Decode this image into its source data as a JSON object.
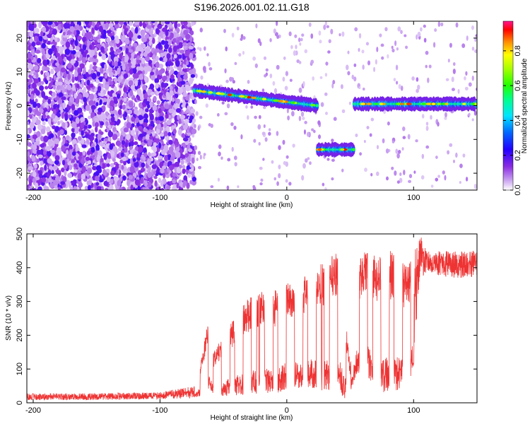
{
  "figure": {
    "title": "S196.2026.001.02.11.G18"
  },
  "chart_data": [
    {
      "id": "spectrogram",
      "type": "heatmap",
      "xlabel": "Height of straight line (km)",
      "ylabel": "Frequency (Hz)",
      "xlim": [
        -205,
        150
      ],
      "ylim": [
        -25,
        25
      ],
      "xticks": [
        -200,
        -100,
        0,
        100
      ],
      "yticks": [
        -20,
        -10,
        0,
        10,
        20
      ],
      "colorbar": {
        "label": "Normalized spectral amplitude",
        "range": [
          0,
          0.97
        ],
        "ticks": [
          0.0,
          0.2,
          0.4,
          0.6,
          0.8
        ],
        "tick_labels": [
          "0.0",
          "0.2",
          "0.4",
          "0.6",
          "0.8"
        ],
        "colormap": "rainbow (white → purple → blue → cyan → green → yellow → red → pink)"
      },
      "features": [
        {
          "region": "noise",
          "x_range": [
            -205,
            -73
          ],
          "freq_range": [
            -25,
            25
          ],
          "amplitude": "low (0.1–0.3)"
        },
        {
          "region": "signal",
          "x_range": [
            -73,
            24
          ],
          "freq_start": 4.5,
          "freq_end": 0.0,
          "amplitude": "0.4–0.9"
        },
        {
          "region": "signal",
          "x_range": [
            24,
            53
          ],
          "freq": -13.0,
          "amplitude": "0.5–0.9"
        },
        {
          "region": "signal",
          "x_range": [
            53,
            150
          ],
          "freq": 0.5,
          "amplitude": "0.5–0.9"
        }
      ]
    },
    {
      "id": "snr",
      "type": "line",
      "xlabel": "Height of straight line (km)",
      "ylabel": "SNR (10 * v/v)",
      "xlim": [
        -205,
        150
      ],
      "ylim": [
        0,
        500
      ],
      "xticks": [
        -200,
        -100,
        0,
        100
      ],
      "yticks": [
        0,
        100,
        200,
        300,
        400,
        500
      ],
      "series": [
        {
          "color": "#ee3333",
          "envelope": {
            "x": [
              -205,
              -150,
              -100,
              -80,
              -73,
              -68,
              -64,
              -62,
              -58,
              -50,
              -40,
              -30,
              -20,
              -10,
              0,
              10,
              20,
              30,
              35,
              40,
              45,
              50,
              55,
              60,
              70,
              80,
              90,
              95,
              100,
              105,
              110,
              130,
              150
            ],
            "min": [
              8,
              8,
              10,
              12,
              15,
              20,
              30,
              40,
              20,
              20,
              20,
              25,
              25,
              25,
              40,
              40,
              40,
              30,
              40,
              50,
              10,
              30,
              80,
              100,
              40,
              25,
              40,
              50,
              100,
              370,
              380,
              370,
              370
            ],
            "max": [
              28,
              28,
              32,
              45,
              50,
              120,
              210,
              230,
              150,
              200,
              260,
              310,
              330,
              330,
              370,
              360,
              400,
              420,
              440,
              450,
              300,
              110,
              400,
              450,
              440,
              460,
              420,
              400,
              440,
              500,
              450,
              450,
              450
            ]
          }
        }
      ]
    }
  ]
}
